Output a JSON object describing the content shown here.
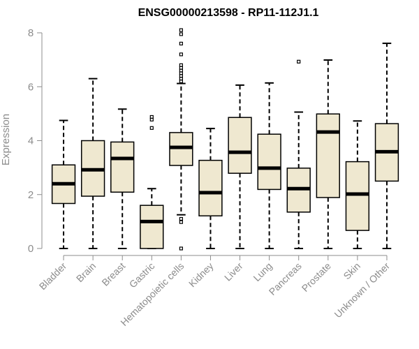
{
  "chart_data": {
    "type": "boxplot",
    "title": "ENSG00000213598 - RP11-112J1.1",
    "ylabel": "Expression",
    "xlabel": "",
    "ylim": [
      0,
      8
    ],
    "yticks": [
      0,
      2,
      4,
      6,
      8
    ],
    "colors": {
      "box_fill": "#efe8d0",
      "stroke": "#000000",
      "axis": "#8c8c8c"
    },
    "categories": [
      "Bladder",
      "Brain",
      "Breast",
      "Gastric",
      "Hematopoietic cells",
      "Kidney",
      "Liver",
      "Lung",
      "Pancreas",
      "Prostate",
      "Skin",
      "Unknown / Other"
    ],
    "boxes": [
      {
        "name": "Bladder",
        "min": 0,
        "q1": 1.67,
        "median": 2.4,
        "q3": 3.1,
        "max": 4.75,
        "outliers": []
      },
      {
        "name": "Brain",
        "min": 0,
        "q1": 1.94,
        "median": 2.92,
        "q3": 4.0,
        "max": 6.3,
        "outliers": []
      },
      {
        "name": "Breast",
        "min": 0,
        "q1": 2.09,
        "median": 3.34,
        "q3": 3.95,
        "max": 5.17,
        "outliers": []
      },
      {
        "name": "Gastric",
        "min": 0,
        "q1": 0,
        "median": 1.0,
        "q3": 1.6,
        "max": 2.22,
        "outliers": [
          4.47,
          4.78,
          4.88
        ]
      },
      {
        "name": "Hematopoietic cells",
        "min": 1.25,
        "q1": 3.08,
        "median": 3.75,
        "q3": 4.3,
        "max": 6.12,
        "outliers": [
          0,
          0.98,
          1.1,
          6.2,
          6.3,
          6.4,
          6.5,
          6.6,
          6.7,
          6.8,
          7.2,
          7.6,
          7.95,
          8.1
        ]
      },
      {
        "name": "Kidney",
        "min": 0,
        "q1": 1.21,
        "median": 2.07,
        "q3": 3.27,
        "max": 4.45,
        "outliers": []
      },
      {
        "name": "Liver",
        "min": 0,
        "q1": 2.79,
        "median": 3.57,
        "q3": 4.86,
        "max": 6.06,
        "outliers": []
      },
      {
        "name": "Lung",
        "min": 0,
        "q1": 2.19,
        "median": 2.98,
        "q3": 4.24,
        "max": 6.14,
        "outliers": []
      },
      {
        "name": "Pancreas",
        "min": 0,
        "q1": 1.35,
        "median": 2.22,
        "q3": 2.98,
        "max": 5.06,
        "outliers": [
          6.93
        ]
      },
      {
        "name": "Prostate",
        "min": 0,
        "q1": 1.89,
        "median": 4.32,
        "q3": 4.99,
        "max": 6.99,
        "outliers": []
      },
      {
        "name": "Skin",
        "min": 0,
        "q1": 0.67,
        "median": 2.02,
        "q3": 3.22,
        "max": 4.73,
        "outliers": []
      },
      {
        "name": "Unknown / Other",
        "min": 0,
        "q1": 2.5,
        "median": 3.59,
        "q3": 4.63,
        "max": 7.61,
        "outliers": []
      }
    ]
  }
}
